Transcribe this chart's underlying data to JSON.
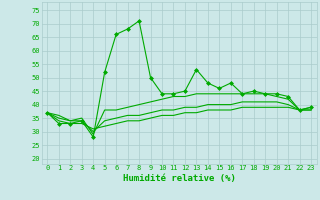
{
  "x": [
    0,
    1,
    2,
    3,
    4,
    5,
    6,
    7,
    8,
    9,
    10,
    11,
    12,
    13,
    14,
    15,
    16,
    17,
    18,
    19,
    20,
    21,
    22,
    23
  ],
  "line1": [
    37,
    33,
    33,
    34,
    28,
    52,
    66,
    68,
    71,
    50,
    44,
    44,
    45,
    53,
    48,
    46,
    48,
    44,
    45,
    44,
    44,
    43,
    38,
    39
  ],
  "line2": [
    37,
    36,
    34,
    35,
    29,
    38,
    38,
    39,
    40,
    41,
    42,
    43,
    43,
    44,
    44,
    44,
    44,
    44,
    44,
    44,
    43,
    42,
    38,
    39
  ],
  "line3": [
    37,
    35,
    34,
    34,
    30,
    34,
    35,
    36,
    36,
    37,
    38,
    38,
    39,
    39,
    40,
    40,
    40,
    41,
    41,
    41,
    41,
    40,
    38,
    38
  ],
  "line4": [
    37,
    34,
    33,
    33,
    31,
    32,
    33,
    34,
    34,
    35,
    36,
    36,
    37,
    37,
    38,
    38,
    38,
    39,
    39,
    39,
    39,
    39,
    38,
    38
  ],
  "bg_color": "#cce8e8",
  "grid_color": "#aacccc",
  "line_color": "#00aa00",
  "xlabel": "Humidité relative (%)",
  "xlabel_color": "#00aa00",
  "xlabel_fontsize": 6.5,
  "tick_color": "#00aa00",
  "tick_fontsize": 5,
  "yticks": [
    20,
    25,
    30,
    35,
    40,
    45,
    50,
    55,
    60,
    65,
    70,
    75
  ],
  "ylim": [
    18,
    78
  ],
  "xlim": [
    -0.5,
    23.5
  ],
  "marker": "D",
  "markersize": 2.0,
  "linewidth": 0.8
}
